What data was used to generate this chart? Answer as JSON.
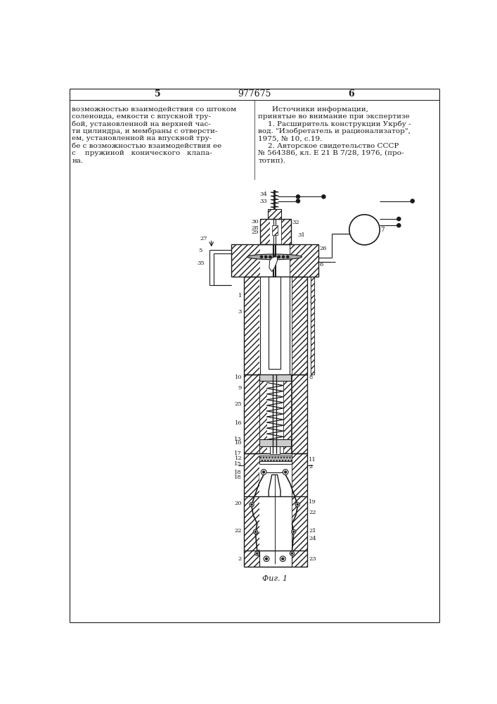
{
  "page_num_left": "5",
  "page_num_center": "977675",
  "page_num_right": "6",
  "text_left": "возможностью взаимодействия со штоком\nсоленоида, емкости с впускной тру-\nбой, установленной на верхней час-\nти цилиндра, и мембраны с отверсти-\nем, установленной на впускной тру-\nбе с возможностью взаимодействия ее\nс    пружиной   конического   клапа-\nна.",
  "text_right_title": "Источники информации,",
  "text_right_1": "принятые во внимание при экспертизе",
  "text_right_2": "1. Расширитель конструкции Укрбу -",
  "text_right_3": "вод. \"Изобретатель и рационализатор\",",
  "text_right_4": "1975, № 10, с.19.",
  "text_right_5": "2. Авторское свидетельство СССР",
  "text_right_6": "№ 564386, кл. Е 21 В 7/28, 1976, (про-",
  "text_right_7": "тотип).",
  "fig_label": "Фиг. 1",
  "bg_color": "#ffffff",
  "line_color": "#1a1a1a",
  "text_color": "#1a1a1a"
}
